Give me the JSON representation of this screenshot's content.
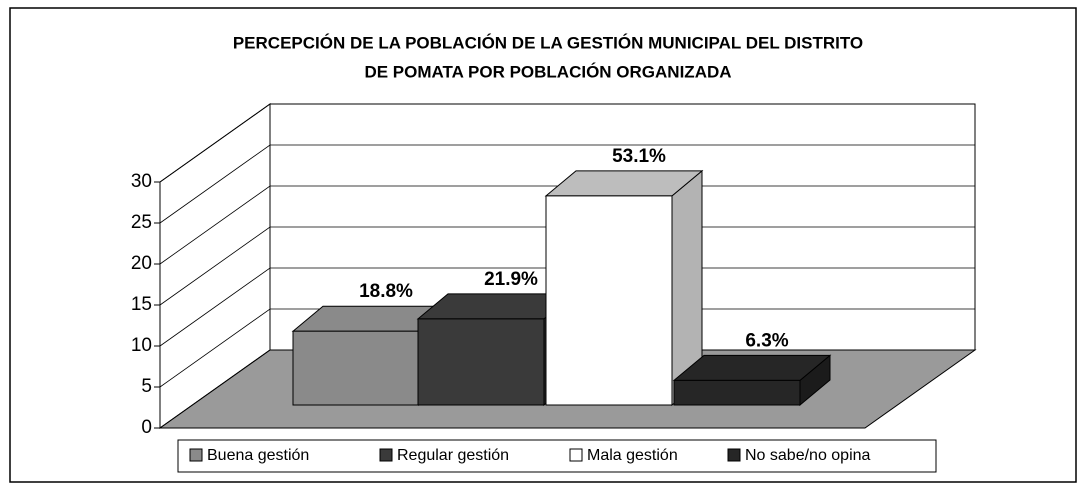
{
  "chart_data": {
    "type": "bar3d",
    "title": [
      "PERCEPCIÓN DE LA POBLACIÓN DE LA GESTIÓN MUNICIPAL DEL DISTRITO",
      "DE POMATA POR POBLACIÓN ORGANIZADA"
    ],
    "series": [
      {
        "name": "Buena gestión",
        "color": "#8a8a8a",
        "values": [
          9
        ],
        "value_labels": [
          "18.8%"
        ]
      },
      {
        "name": "Regular gestión",
        "color": "#3a3a3a",
        "values": [
          10.5
        ],
        "value_labels": [
          "21.9%"
        ]
      },
      {
        "name": "Mala gestión",
        "color": "#ffffff",
        "values": [
          25.5
        ],
        "value_labels": [
          "53.1%"
        ]
      },
      {
        "name": "No sabe/no opina",
        "color": "#262626",
        "values": [
          3
        ],
        "value_labels": [
          "6.3%"
        ]
      }
    ],
    "ylim": [
      0,
      30
    ],
    "yticks": [
      0,
      5,
      10,
      15,
      20,
      25,
      30
    ],
    "grid": true,
    "legend": "bottom"
  }
}
